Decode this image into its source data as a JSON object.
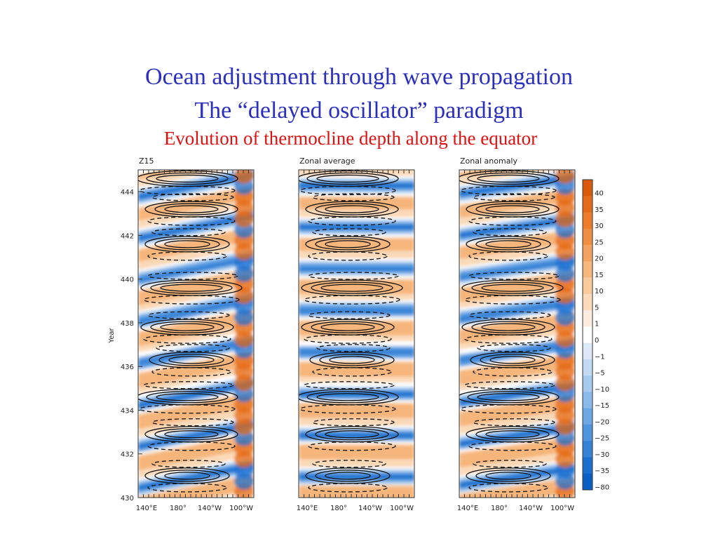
{
  "slide": {
    "title_line1": "Ocean adjustment through wave propagation",
    "title_line2": "The “delayed oscillator” paradigm",
    "subtitle": "Evolution of thermocline depth along the equator"
  },
  "chart_data": {
    "type": "heatmap",
    "ylabel": "Year",
    "ylim": [
      430,
      445
    ],
    "yticks": [
      430,
      432,
      434,
      436,
      438,
      440,
      442,
      444
    ],
    "xticks": [
      "140°E",
      "180°",
      "140°W",
      "100°W"
    ],
    "panels": [
      {
        "title": "Z15"
      },
      {
        "title": "Zonal average"
      },
      {
        "title": "Zonal anomaly"
      }
    ],
    "colorbar": {
      "labels": [
        "40",
        "35",
        "30",
        "25",
        "20",
        "15",
        "10",
        "5",
        "1",
        "0",
        "−1",
        "−5",
        "−10",
        "−15",
        "−20",
        "−25",
        "−30",
        "−35",
        "−80"
      ],
      "colors": [
        "#d95a0a",
        "#e36a18",
        "#ec7c2c",
        "#f08f44",
        "#f3a35f",
        "#f6b77c",
        "#f9ca9b",
        "#fbdbbb",
        "#fdece0",
        "#ffffff",
        "#dde9f7",
        "#c2dbf3",
        "#a6cbee",
        "#89bae9",
        "#6ba8e4",
        "#4f95de",
        "#3583d7",
        "#1b70cf",
        "#0a5fc4"
      ]
    }
  }
}
